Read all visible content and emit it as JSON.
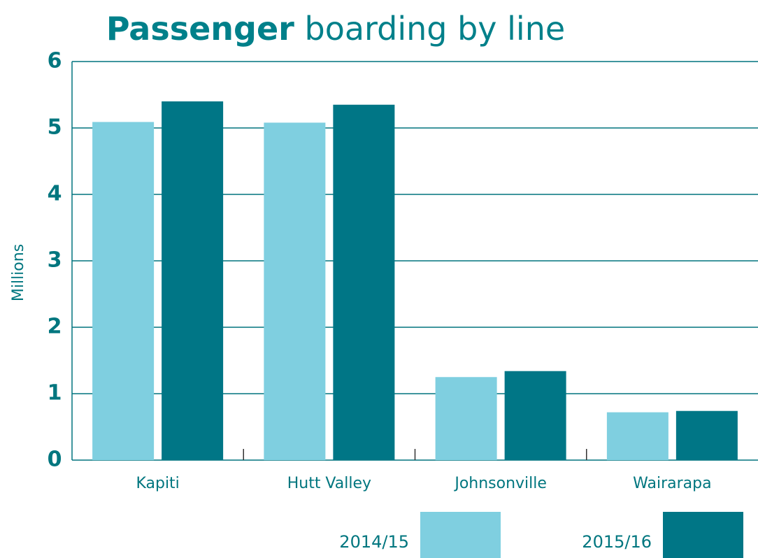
{
  "chart_data": {
    "type": "bar",
    "title": "Passenger boarding by line",
    "y_label": "Millions",
    "categories": [
      "Kapiti",
      "Hutt Valley",
      "Johnsonville",
      "Wairarapa"
    ],
    "series": [
      {
        "name": "2014/15",
        "color": "#7fcfe0",
        "values": [
          5.09,
          5.08,
          1.25,
          0.72
        ]
      },
      {
        "name": "2015/16",
        "color": "#007686",
        "values": [
          5.4,
          5.35,
          1.34,
          0.74
        ]
      }
    ],
    "ylim": [
      0,
      6
    ],
    "yticks": [
      0,
      1,
      2,
      3,
      4,
      5,
      6
    ],
    "grid": true,
    "legend": "bottom"
  }
}
